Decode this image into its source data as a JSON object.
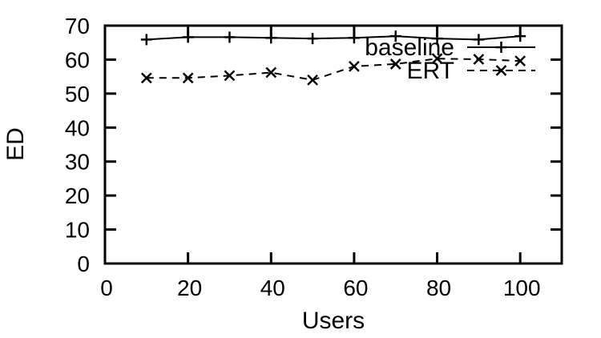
{
  "figure": {
    "background": "#ffffff",
    "foreground": "#000000"
  },
  "chart_data": {
    "type": "line",
    "title": "",
    "xlabel": "Users",
    "ylabel": "ED",
    "xlim": [
      0,
      110
    ],
    "ylim": [
      0,
      70
    ],
    "xticks": [
      0,
      20,
      40,
      60,
      80,
      100
    ],
    "yticks": [
      0,
      10,
      20,
      30,
      40,
      50,
      60,
      70
    ],
    "grid": false,
    "legend": {
      "position": "inside-top-right",
      "box": false,
      "entries": [
        "baseline",
        "ERT"
      ]
    },
    "x": [
      10,
      20,
      30,
      40,
      50,
      60,
      70,
      80,
      90,
      100
    ],
    "series": [
      {
        "name": "baseline",
        "line": "solid",
        "marker": "plus",
        "color": "#000000",
        "values": [
          65.9,
          66.6,
          66.6,
          66.4,
          66.2,
          66.4,
          66.9,
          66.2,
          65.9,
          66.9
        ]
      },
      {
        "name": "ERT",
        "line": "dashed",
        "marker": "cross",
        "color": "#000000",
        "values": [
          54.6,
          54.6,
          55.3,
          56.2,
          54.0,
          58.0,
          58.7,
          60.3,
          60.1,
          59.6
        ]
      }
    ],
    "axis_color": "#000000"
  }
}
